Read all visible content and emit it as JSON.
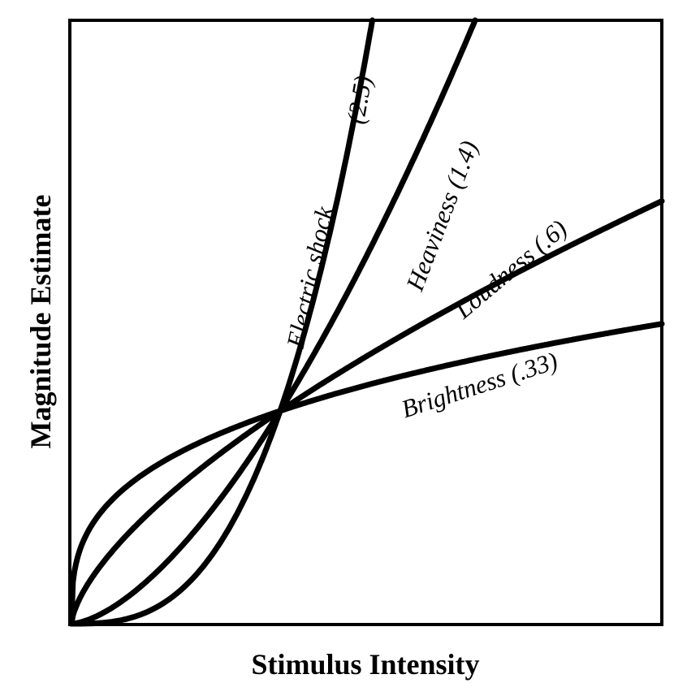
{
  "chart_data": {
    "type": "line",
    "title": "",
    "xlabel": "Stimulus Intensity",
    "ylabel": "Magnitude Estimate",
    "grid": false,
    "legend": "inline labels on curves",
    "axis_ticks": "none",
    "description": "Power functions y = x^n passing through a common point (1,1)",
    "series": [
      {
        "name": "Electric shock",
        "exponent": 2.5,
        "label": "Electric shock",
        "exp_label": "(2.5)"
      },
      {
        "name": "Heaviness",
        "exponent": 1.4,
        "label": "Heaviness (1.4)"
      },
      {
        "name": "Loudness",
        "exponent": 0.6,
        "label": "Loudness (.6)"
      },
      {
        "name": "Brightness",
        "exponent": 0.33,
        "label": "Brightness (.33)"
      }
    ],
    "xlim": [
      0,
      2.83
    ],
    "ylim": [
      0,
      2.84
    ],
    "colors": {
      "line": "#000000",
      "background": "#ffffff"
    }
  },
  "axes": {
    "x_title": "Stimulus Intensity",
    "y_title": "Magnitude Estimate"
  },
  "labels": {
    "electric": "Electric shock",
    "electric_exp": "(2.5)",
    "heaviness": "Heaviness (1.4)",
    "loudness": "Loudness (.6)",
    "brightness": "Brightness (.33)"
  }
}
